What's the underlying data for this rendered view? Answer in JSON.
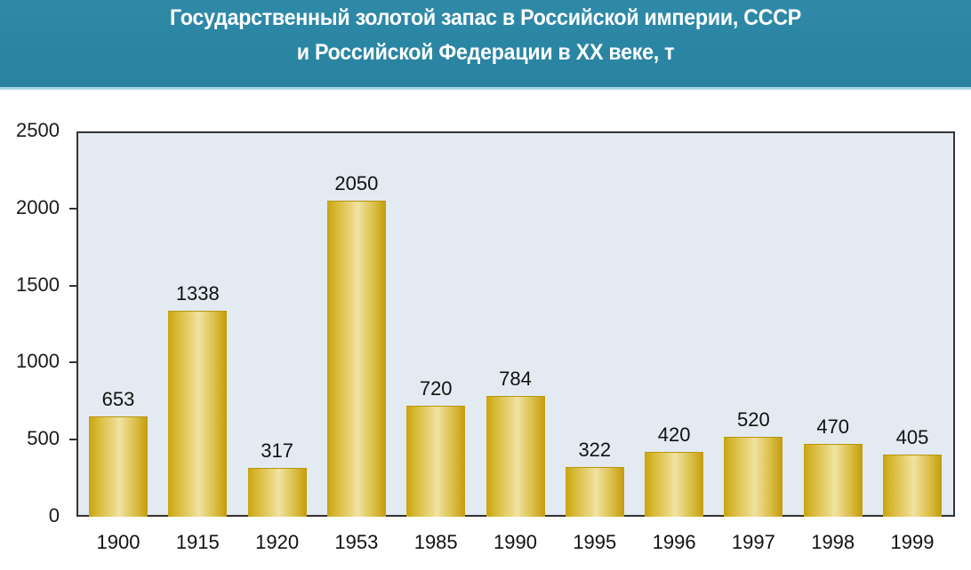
{
  "header": {
    "title_line1": "Государственный золотой запас в Российской империи, СССР",
    "title_line2": "и Российской Федерации в XX веке, т",
    "background_color": "#2f8aa8"
  },
  "chart_data": {
    "type": "bar",
    "title": "Государственный золотой запас в Российской империи, СССР и Российской Федерации в XX веке, т",
    "xlabel": "",
    "ylabel": "т",
    "ylim": [
      0,
      2500
    ],
    "yticks": [
      0,
      500,
      1000,
      1500,
      2000,
      2500
    ],
    "grid": false,
    "legend": null,
    "bar_color": "#d8b935",
    "categories": [
      "1900",
      "1915",
      "1920",
      "1953",
      "1985",
      "1990",
      "1995",
      "1996",
      "1997",
      "1998",
      "1999"
    ],
    "values": [
      653,
      1338,
      317,
      2050,
      720,
      784,
      322,
      420,
      520,
      470,
      405
    ],
    "value_labels": [
      "653",
      "1338",
      "317",
      "2050",
      "720",
      "784",
      "322",
      "420",
      "520",
      "470",
      "405"
    ]
  },
  "axis": {
    "ytick_labels": [
      "2500",
      "2000",
      "1500",
      "1000",
      "500",
      "0"
    ]
  }
}
